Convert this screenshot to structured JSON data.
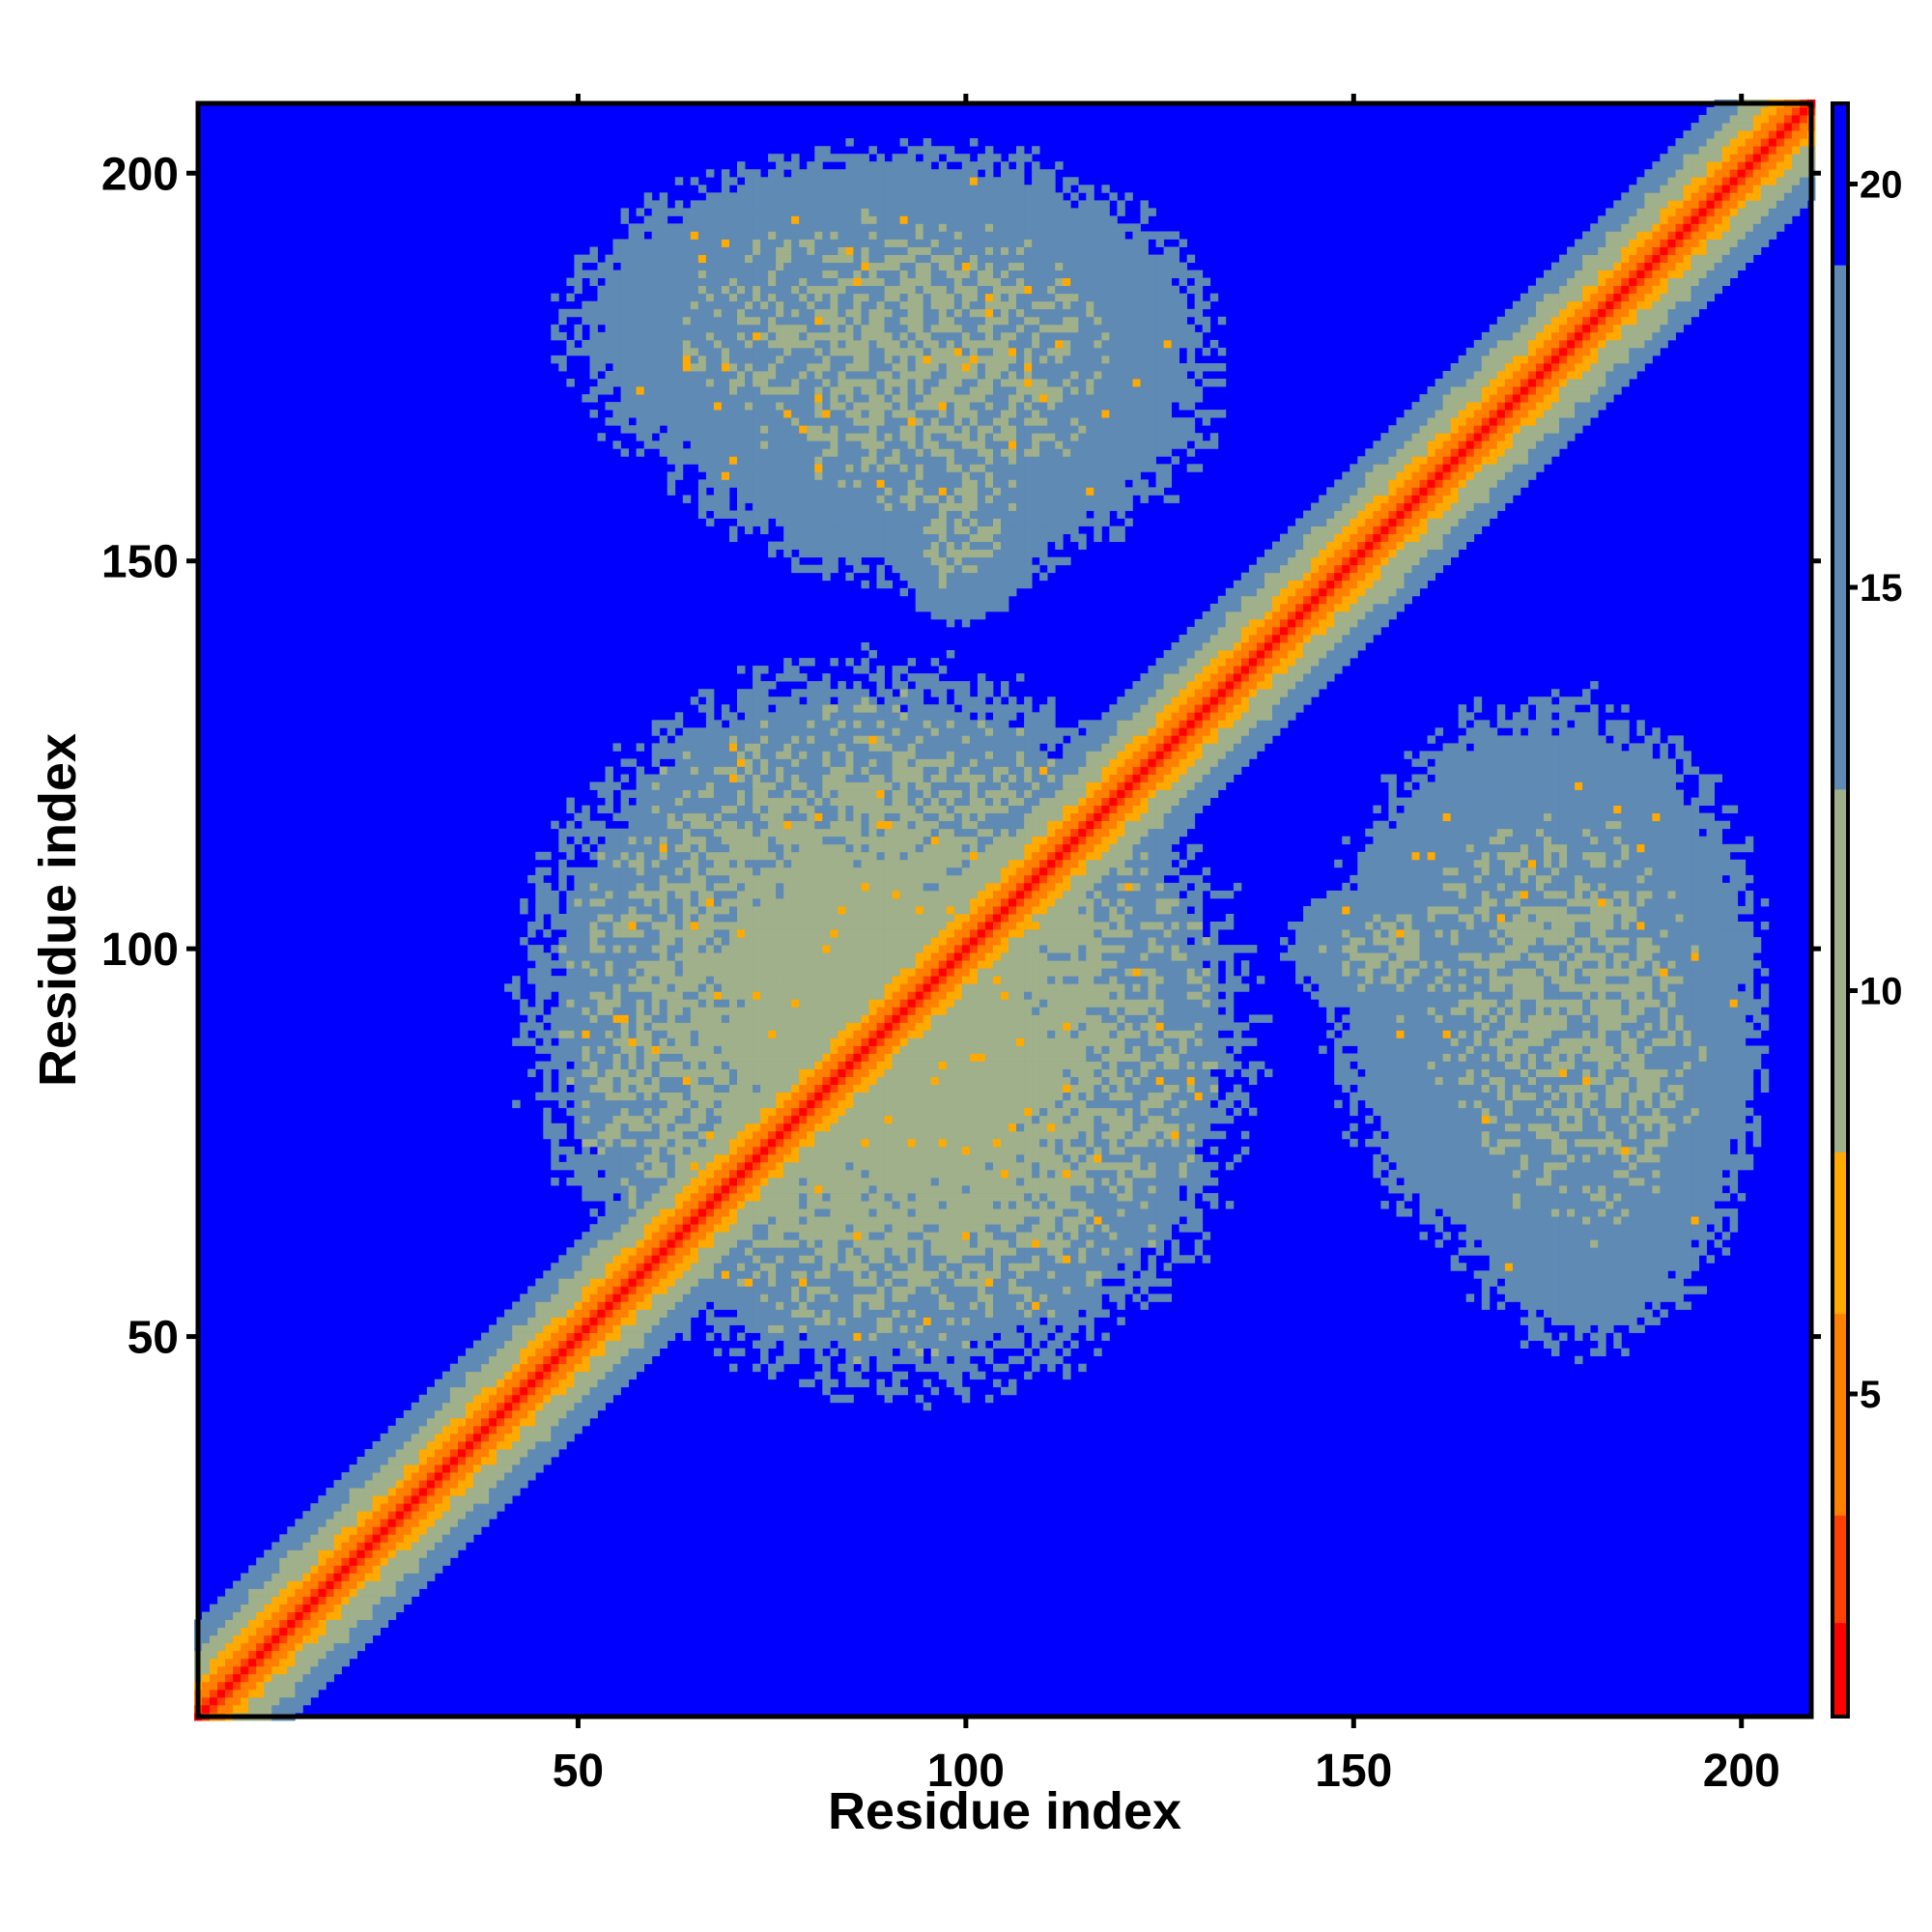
{
  "chart_data": {
    "type": "heatmap",
    "description_of_values": "pairwise residue distance map, color encodes distance",
    "xlabel": "Residue index",
    "ylabel": "Residue index",
    "xlim": [
      1,
      209
    ],
    "ylim": [
      1,
      209
    ],
    "n_residues": 209,
    "x_ticks": [
      50,
      100,
      150,
      200
    ],
    "y_ticks": [
      50,
      100,
      150,
      200
    ],
    "colorbar": {
      "range": [
        1,
        21
      ],
      "ticks": [
        5,
        10,
        15,
        20
      ],
      "colors": [
        "#ff0000",
        "#ff4000",
        "#ff8000",
        "#ffaa00",
        "#9fb08a",
        "#5f8ab4",
        "#0000ff"
      ]
    },
    "regions": [
      {
        "x": [
          45,
          140
        ],
        "y": [
          40,
          135
        ],
        "level": 14
      },
      {
        "x": [
          140,
          170
        ],
        "y": [
          90,
          110
        ],
        "level": 16
      },
      {
        "x": [
          55,
          135
        ],
        "y": [
          145,
          205
        ],
        "level": 16
      },
      {
        "x": [
          155,
          205
        ],
        "y": [
          45,
          135
        ],
        "level": 16
      }
    ]
  }
}
